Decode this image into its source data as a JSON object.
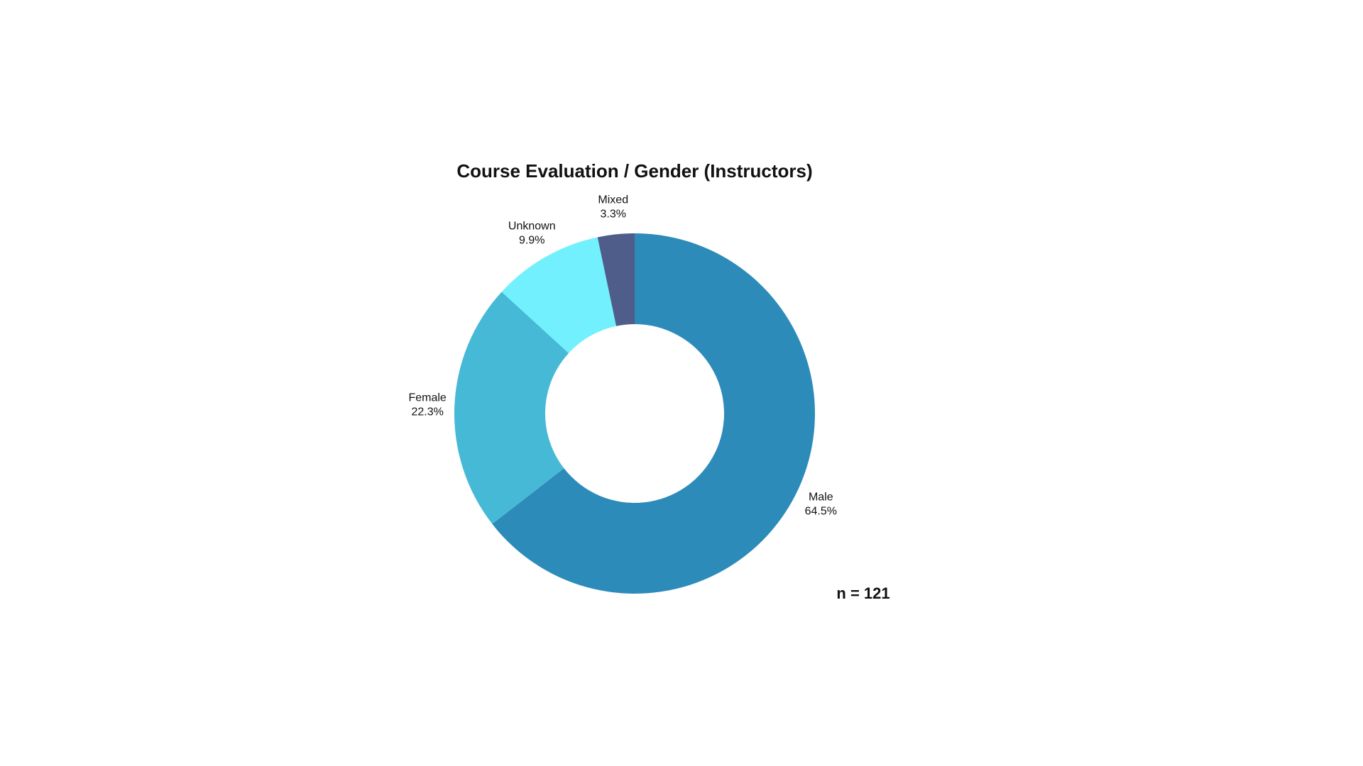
{
  "chart_data": {
    "type": "donut",
    "title": "Course Evaluation / Gender (Instructors)",
    "categories": [
      "Male",
      "Female",
      "Unknown",
      "Mixed"
    ],
    "values": [
      64.5,
      22.3,
      9.9,
      3.3
    ],
    "value_labels": [
      "64.5%",
      "22.3%",
      "9.9%",
      "3.3%"
    ],
    "colors": [
      "#2d8bba",
      "#46b9d6",
      "#72f0fd",
      "#4e5d8a"
    ],
    "annotation": "n = 121"
  }
}
